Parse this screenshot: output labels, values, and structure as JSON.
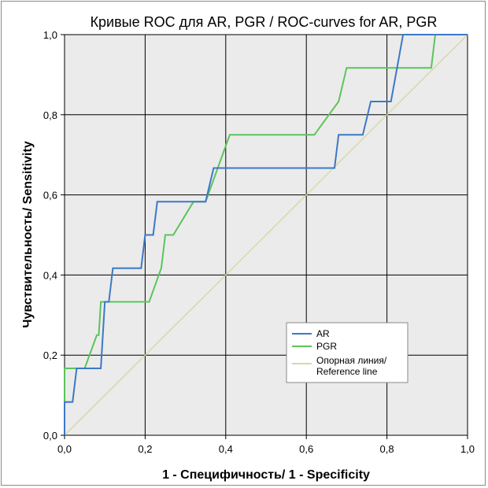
{
  "chart_data": {
    "type": "line",
    "title": "Кривые ROC для AR, PGR / ROC-curves for AR, PGR",
    "xlabel": "1 - Специфичность/ 1 - Specificity",
    "ylabel": "Чувствительность/ Sensitivity",
    "xlim": [
      0,
      1
    ],
    "ylim": [
      0,
      1
    ],
    "grid": true,
    "legend_position": "lower-right",
    "x_ticks": [
      "0,0",
      "0,2",
      "0,4",
      "0,6",
      "0,8",
      "1,0"
    ],
    "y_ticks": [
      "0,0",
      "0,2",
      "0,4",
      "0,6",
      "0,8",
      "1,0"
    ],
    "series": [
      {
        "name": "AR",
        "color": "#3c78c8",
        "points": [
          [
            0,
            0
          ],
          [
            0,
            0.083
          ],
          [
            0.02,
            0.083
          ],
          [
            0.03,
            0.167
          ],
          [
            0.09,
            0.167
          ],
          [
            0.1,
            0.333
          ],
          [
            0.11,
            0.333
          ],
          [
            0.12,
            0.417
          ],
          [
            0.19,
            0.417
          ],
          [
            0.2,
            0.5
          ],
          [
            0.22,
            0.5
          ],
          [
            0.23,
            0.583
          ],
          [
            0.35,
            0.583
          ],
          [
            0.37,
            0.667
          ],
          [
            0.67,
            0.667
          ],
          [
            0.68,
            0.75
          ],
          [
            0.74,
            0.75
          ],
          [
            0.76,
            0.833
          ],
          [
            0.81,
            0.833
          ],
          [
            0.84,
            1
          ],
          [
            1,
            1
          ]
        ]
      },
      {
        "name": "PGR",
        "color": "#5cc45c",
        "points": [
          [
            0,
            0
          ],
          [
            0,
            0.167
          ],
          [
            0.05,
            0.167
          ],
          [
            0.08,
            0.25
          ],
          [
            0.085,
            0.25
          ],
          [
            0.09,
            0.333
          ],
          [
            0.21,
            0.333
          ],
          [
            0.24,
            0.417
          ],
          [
            0.25,
            0.5
          ],
          [
            0.27,
            0.5
          ],
          [
            0.32,
            0.583
          ],
          [
            0.35,
            0.583
          ],
          [
            0.41,
            0.75
          ],
          [
            0.62,
            0.75
          ],
          [
            0.68,
            0.833
          ],
          [
            0.7,
            0.917
          ],
          [
            0.91,
            0.917
          ],
          [
            0.92,
            1
          ],
          [
            1,
            1
          ]
        ]
      },
      {
        "name": "Опорная линия/ Reference line",
        "color": "#d7d9a6",
        "points": [
          [
            0,
            0
          ],
          [
            1,
            1
          ]
        ]
      }
    ],
    "legend": [
      "AR",
      "PGR",
      "Опорная линия/",
      "Reference line"
    ]
  }
}
